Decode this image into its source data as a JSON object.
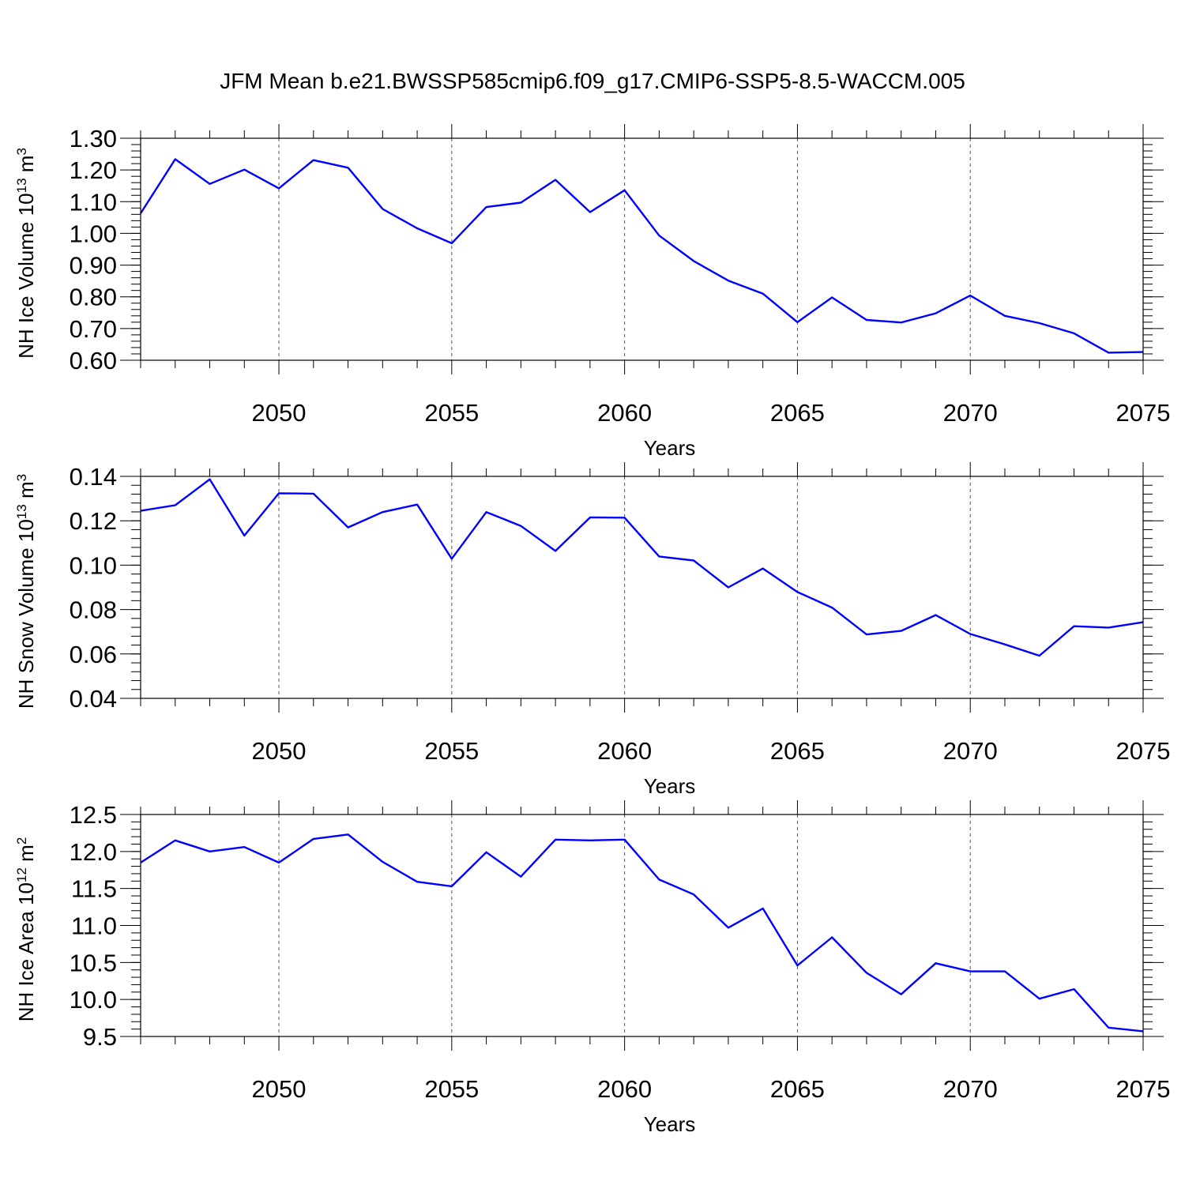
{
  "title": "JFM Mean b.e21.BWSSP585cmip6.f09_g17.CMIP6-SSP5-8.5-WACCM.005",
  "colors": {
    "line": "#0000ff",
    "axis": "#000000",
    "grid": "#555555"
  },
  "chart_data": [
    {
      "type": "line",
      "ylabel": "NH Ice Volume 10",
      "ylabel_exp": "13",
      "ylabel_unit": " m",
      "ylabel_unit_exp": "3",
      "xlabel": "Years",
      "xlim": [
        2046,
        2075
      ],
      "ylim": [
        0.6,
        1.3
      ],
      "yticks": [
        0.6,
        0.7,
        0.8,
        0.9,
        1.0,
        1.1,
        1.2,
        1.3
      ],
      "ytick_labels": [
        "0.60",
        "0.70",
        "0.80",
        "0.90",
        "1.00",
        "1.10",
        "1.20",
        "1.30"
      ],
      "yminor_step": 0.02,
      "xticks": [
        2050,
        2055,
        2060,
        2065,
        2070,
        2075
      ],
      "xtick_labels": [
        "2050",
        "2055",
        "2060",
        "2065",
        "2070",
        "2075"
      ],
      "grid": "vertical dashed at major x ticks",
      "x": [
        2046,
        2047,
        2048,
        2049,
        2050,
        2051,
        2052,
        2053,
        2054,
        2055,
        2056,
        2057,
        2058,
        2059,
        2060,
        2061,
        2062,
        2063,
        2064,
        2065,
        2066,
        2067,
        2068,
        2069,
        2070,
        2071,
        2072,
        2073,
        2074,
        2075
      ],
      "values": [
        1.063,
        1.234,
        1.156,
        1.201,
        1.142,
        1.231,
        1.207,
        1.077,
        1.016,
        0.969,
        1.083,
        1.097,
        1.169,
        1.067,
        1.136,
        0.993,
        0.913,
        0.851,
        0.81,
        0.72,
        0.798,
        0.727,
        0.719,
        0.748,
        0.804,
        0.74,
        0.717,
        0.685,
        0.624,
        0.626
      ]
    },
    {
      "type": "line",
      "ylabel": "NH Snow Volume 10",
      "ylabel_exp": "13",
      "ylabel_unit": " m",
      "ylabel_unit_exp": "3",
      "xlabel": "Years",
      "xlim": [
        2046,
        2075
      ],
      "ylim": [
        0.04,
        0.14
      ],
      "yticks": [
        0.04,
        0.06,
        0.08,
        0.1,
        0.12,
        0.14
      ],
      "ytick_labels": [
        "0.04",
        "0.06",
        "0.08",
        "0.10",
        "0.12",
        "0.14"
      ],
      "yminor_step": 0.004,
      "xticks": [
        2050,
        2055,
        2060,
        2065,
        2070,
        2075
      ],
      "xtick_labels": [
        "2050",
        "2055",
        "2060",
        "2065",
        "2070",
        "2075"
      ],
      "grid": "vertical dashed at major x ticks",
      "x": [
        2046,
        2047,
        2048,
        2049,
        2050,
        2051,
        2052,
        2053,
        2054,
        2055,
        2056,
        2057,
        2058,
        2059,
        2060,
        2061,
        2062,
        2063,
        2064,
        2065,
        2066,
        2067,
        2068,
        2069,
        2070,
        2071,
        2072,
        2073,
        2074,
        2075
      ],
      "values": [
        0.1245,
        0.127,
        0.1387,
        0.1133,
        0.1324,
        0.1322,
        0.117,
        0.1239,
        0.1273,
        0.1029,
        0.1239,
        0.1177,
        0.1064,
        0.1215,
        0.1214,
        0.1039,
        0.1021,
        0.09,
        0.0985,
        0.0879,
        0.0809,
        0.0688,
        0.0704,
        0.0775,
        0.069,
        0.0643,
        0.0592,
        0.0725,
        0.0719,
        0.0743
      ]
    },
    {
      "type": "line",
      "ylabel": "NH Ice Area 10",
      "ylabel_exp": "12",
      "ylabel_unit": " m",
      "ylabel_unit_exp": "2",
      "xlabel": "Years",
      "xlim": [
        2046,
        2075
      ],
      "ylim": [
        9.5,
        12.5
      ],
      "yticks": [
        9.5,
        10.0,
        10.5,
        11.0,
        11.5,
        12.0,
        12.5
      ],
      "ytick_labels": [
        "9.5",
        "10.0",
        "10.5",
        "11.0",
        "11.5",
        "12.0",
        "12.5"
      ],
      "yminor_step": 0.1,
      "xticks": [
        2050,
        2055,
        2060,
        2065,
        2070,
        2075
      ],
      "xtick_labels": [
        "2050",
        "2055",
        "2060",
        "2065",
        "2070",
        "2075"
      ],
      "grid": "vertical dashed at major x ticks",
      "x": [
        2046,
        2047,
        2048,
        2049,
        2050,
        2051,
        2052,
        2053,
        2054,
        2055,
        2056,
        2057,
        2058,
        2059,
        2060,
        2061,
        2062,
        2063,
        2064,
        2065,
        2066,
        2067,
        2068,
        2069,
        2070,
        2071,
        2072,
        2073,
        2074,
        2075
      ],
      "values": [
        11.85,
        12.15,
        12.0,
        12.06,
        11.85,
        12.17,
        12.23,
        11.86,
        11.59,
        11.53,
        11.99,
        11.66,
        12.16,
        12.15,
        12.16,
        11.62,
        11.42,
        10.97,
        11.23,
        10.46,
        10.84,
        10.36,
        10.07,
        10.49,
        10.38,
        10.38,
        10.01,
        10.14,
        9.62,
        9.57
      ]
    }
  ]
}
